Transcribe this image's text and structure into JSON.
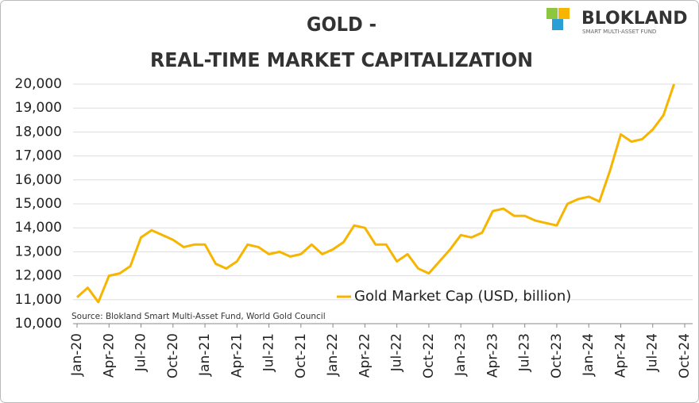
{
  "logo": {
    "name": "BLOKLAND",
    "tagline": "SMART MULTI-ASSET FUND"
  },
  "chart_data": {
    "type": "line",
    "title": [
      "GOLD -",
      "REAL-TIME MARKET CAPITALIZATION"
    ],
    "source": "Source: Blokland Smart Multi-Asset Fund, World Gold Council",
    "x": [
      "2020-01",
      "2020-02",
      "2020-03",
      "2020-04",
      "2020-05",
      "2020-06",
      "2020-07",
      "2020-08",
      "2020-09",
      "2020-10",
      "2020-11",
      "2020-12",
      "2021-01",
      "2021-02",
      "2021-03",
      "2021-04",
      "2021-05",
      "2021-06",
      "2021-07",
      "2021-08",
      "2021-09",
      "2021-10",
      "2021-11",
      "2021-12",
      "2022-01",
      "2022-02",
      "2022-03",
      "2022-04",
      "2022-05",
      "2022-06",
      "2022-07",
      "2022-08",
      "2022-09",
      "2022-10",
      "2022-11",
      "2022-12",
      "2023-01",
      "2023-02",
      "2023-03",
      "2023-04",
      "2023-05",
      "2023-06",
      "2023-07",
      "2023-08",
      "2023-09",
      "2023-10",
      "2023-11",
      "2023-12",
      "2024-01",
      "2024-02",
      "2024-03",
      "2024-04",
      "2024-05",
      "2024-06",
      "2024-07",
      "2024-08",
      "2024-09"
    ],
    "series": [
      {
        "name": "Gold Market Cap (USD, billion)",
        "color": "#f7b500",
        "values": [
          11100,
          11500,
          10900,
          12000,
          12100,
          12400,
          13600,
          13900,
          13700,
          13500,
          13200,
          13300,
          13300,
          12500,
          12300,
          12600,
          13300,
          13200,
          12900,
          13000,
          12800,
          12900,
          13300,
          12900,
          13100,
          13400,
          14100,
          14000,
          13300,
          13300,
          12600,
          12900,
          12300,
          12100,
          12600,
          13100,
          13700,
          13600,
          13800,
          14700,
          14800,
          14500,
          14500,
          14300,
          14200,
          14100,
          15000,
          15200,
          15300,
          15100,
          16400,
          17900,
          17600,
          17700,
          18100,
          18700,
          20000
        ]
      }
    ],
    "xlim": [
      "2020-01",
      "2024-10"
    ],
    "xticks": [
      {
        "value": "2020-01",
        "label": "Jan-20"
      },
      {
        "value": "2020-04",
        "label": "Apr-20"
      },
      {
        "value": "2020-07",
        "label": "Jul-20"
      },
      {
        "value": "2020-10",
        "label": "Oct-20"
      },
      {
        "value": "2021-01",
        "label": "Jan-21"
      },
      {
        "value": "2021-04",
        "label": "Apr-21"
      },
      {
        "value": "2021-07",
        "label": "Jul-21"
      },
      {
        "value": "2021-10",
        "label": "Oct-21"
      },
      {
        "value": "2022-01",
        "label": "Jan-22"
      },
      {
        "value": "2022-04",
        "label": "Apr-22"
      },
      {
        "value": "2022-07",
        "label": "Jul-22"
      },
      {
        "value": "2022-10",
        "label": "Oct-22"
      },
      {
        "value": "2023-01",
        "label": "Jan-23"
      },
      {
        "value": "2023-04",
        "label": "Apr-23"
      },
      {
        "value": "2023-07",
        "label": "Jul-23"
      },
      {
        "value": "2023-10",
        "label": "Oct-23"
      },
      {
        "value": "2024-01",
        "label": "Jan-24"
      },
      {
        "value": "2024-04",
        "label": "Apr-24"
      },
      {
        "value": "2024-07",
        "label": "Jul-24"
      },
      {
        "value": "2024-10",
        "label": "Oct-24"
      }
    ],
    "ylim": [
      10000,
      20000
    ],
    "yticks": [
      {
        "value": 10000,
        "label": "10,000"
      },
      {
        "value": 11000,
        "label": "11,000"
      },
      {
        "value": 12000,
        "label": "12,000"
      },
      {
        "value": 13000,
        "label": "13,000"
      },
      {
        "value": 14000,
        "label": "14,000"
      },
      {
        "value": 15000,
        "label": "15,000"
      },
      {
        "value": 16000,
        "label": "16,000"
      },
      {
        "value": 17000,
        "label": "17,000"
      },
      {
        "value": 18000,
        "label": "18,000"
      },
      {
        "value": 19000,
        "label": "19,000"
      },
      {
        "value": 20000,
        "label": "20,000"
      }
    ],
    "grid": true
  }
}
